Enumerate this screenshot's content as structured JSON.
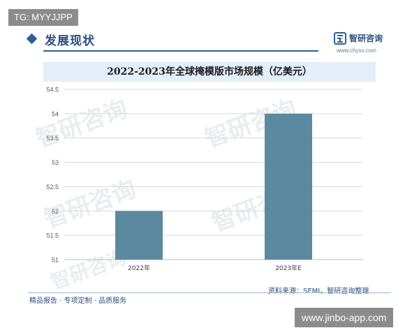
{
  "top_tag": "TG: MYYJJPP",
  "header": {
    "title": "发展现状"
  },
  "brand": {
    "name": "智研咨询",
    "url": "www.chyxx.com"
  },
  "footer": {
    "left_text": "精品报告 · 专项定制 · 品质服务",
    "source": "资料来源：SEMI，智研咨询整理"
  },
  "bottom_tag": "www.jinbo-app.com",
  "watermark_text": "智研咨询",
  "colors": {
    "bar": "#5b8aa0",
    "header_blue": "#2b4f7e",
    "title_band": "#e3eef8",
    "grid": "#d9d9d9"
  },
  "chart_data": {
    "type": "bar",
    "title": "2022-2023年全球掩模版市场规模（亿美元）",
    "categories": [
      "2022年",
      "2023年E"
    ],
    "values": [
      52,
      54
    ],
    "ylim": [
      51,
      54.5
    ],
    "yticks": [
      "51",
      "51.5",
      "52",
      "52.5",
      "53",
      "53.5",
      "54",
      "54.5"
    ],
    "grid": "horizontal",
    "legend": "none"
  }
}
